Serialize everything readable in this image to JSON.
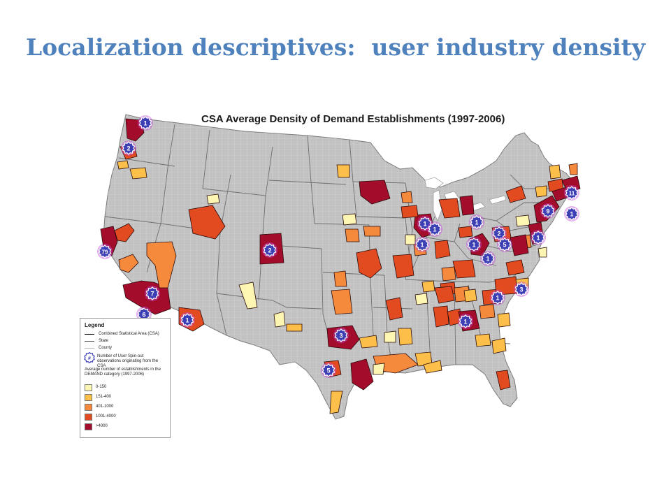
{
  "slide": {
    "title": "Localization descriptives:  user industry density"
  },
  "map": {
    "title": "CSA Average Density of Demand Establishments (1997-2006)",
    "colors": {
      "land": "#c2c2c2",
      "county_lines": "#dedede",
      "ocean": "#ffffff"
    },
    "legend": {
      "title": "Legend",
      "lines": [
        {
          "label": "Combined Statistical Area (CSA)",
          "color": "#000000"
        },
        {
          "label": "State",
          "color": "#555555"
        },
        {
          "label": "County",
          "color": "#bbbbbb"
        }
      ],
      "badge_symbol": "#",
      "badge_label_1": "Number of User Spin-out",
      "badge_label_2": "observations originating from the CSA",
      "density_title_1": "Average number of establishments in the",
      "density_title_2": "DEMAND category (1997-2006)",
      "classes": [
        {
          "label": "0-150",
          "color": "#fdf5b2"
        },
        {
          "label": "151-400",
          "color": "#fbbf4a"
        },
        {
          "label": "401-1000",
          "color": "#f68a3c"
        },
        {
          "label": "1001-4000",
          "color": "#e24a20"
        },
        {
          "label": ">4000",
          "color": "#a30d2b"
        }
      ]
    },
    "spinout_badges": [
      {
        "location": "Seattle",
        "count": "1"
      },
      {
        "location": "Portland",
        "count": "2"
      },
      {
        "location": "San Francisco Bay Area",
        "count": "79"
      },
      {
        "location": "Los Angeles",
        "count": "7"
      },
      {
        "location": "San Diego",
        "count": "6"
      },
      {
        "location": "Phoenix",
        "count": "1"
      },
      {
        "location": "Denver",
        "count": "2"
      },
      {
        "location": "Dallas",
        "count": "3"
      },
      {
        "location": "San Antonio",
        "count": "5"
      },
      {
        "location": "Chicago",
        "count": "1"
      },
      {
        "location": "Chicago (south)",
        "count": "1"
      },
      {
        "location": "Milwaukee area",
        "count": "1"
      },
      {
        "location": "Grand Rapids area",
        "count": "1"
      },
      {
        "location": "Cleveland",
        "count": "1"
      },
      {
        "location": "Pittsburgh",
        "count": "2"
      },
      {
        "location": "Columbus",
        "count": "1"
      },
      {
        "location": "Washington DC",
        "count": "5"
      },
      {
        "location": "Philadelphia",
        "count": "1"
      },
      {
        "location": "New York",
        "count": "9"
      },
      {
        "location": "Hartford",
        "count": "1"
      },
      {
        "location": "Boston",
        "count": "11"
      },
      {
        "location": "Raleigh-Durham",
        "count": "3"
      },
      {
        "location": "Greensboro",
        "count": "1"
      },
      {
        "location": "Atlanta",
        "count": "1"
      }
    ]
  }
}
